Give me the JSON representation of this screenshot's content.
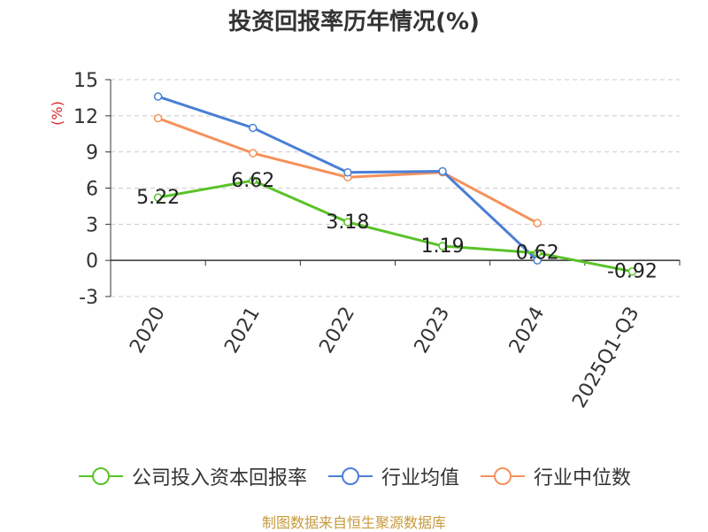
{
  "chart_data": {
    "type": "line",
    "title": "投资回报率历年情况(%)",
    "ylabel": "(%)",
    "xlabel": "",
    "categories": [
      "2020",
      "2021",
      "2022",
      "2023",
      "2024",
      "2025Q1-Q3"
    ],
    "ylim": [
      -3,
      15
    ],
    "yticks": [
      15,
      12,
      9,
      6,
      3,
      0,
      -3
    ],
    "grid": true,
    "legend_position": "bottom",
    "series": [
      {
        "name": "公司投入资本回报率",
        "color": "#5ac229",
        "values": [
          5.22,
          6.62,
          3.18,
          1.19,
          0.62,
          -0.92
        ],
        "labels": [
          "5.22",
          "6.62",
          "3.18",
          "1.19",
          "0.62",
          "-0.92"
        ]
      },
      {
        "name": "行业均值",
        "color": "#4a7fd6",
        "values": [
          13.6,
          11.0,
          7.3,
          7.4,
          0.0,
          null
        ]
      },
      {
        "name": "行业中位数",
        "color": "#f5915a",
        "values": [
          11.8,
          8.9,
          6.9,
          7.3,
          3.1,
          null
        ]
      }
    ]
  },
  "source": {
    "text": "制图数据来自恒生聚源数据库",
    "color": "#c79a3c"
  }
}
